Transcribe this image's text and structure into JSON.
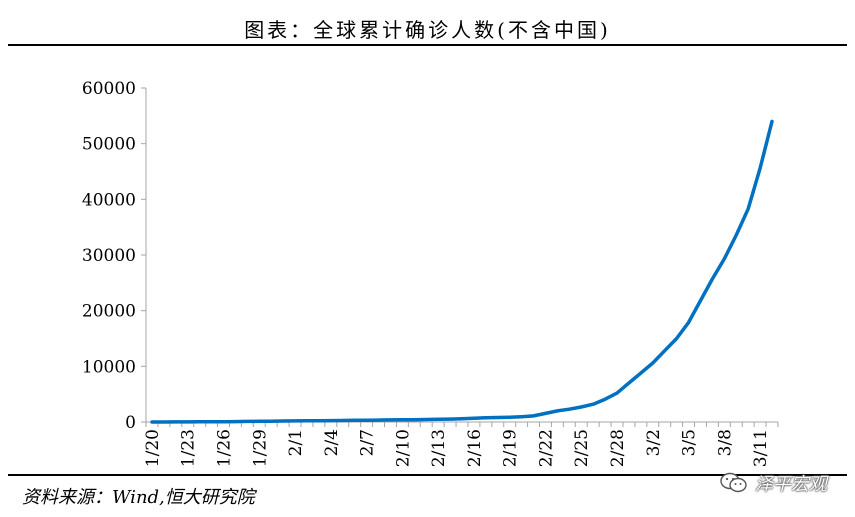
{
  "title": "图表：全球累计确诊人数(不含中国)",
  "source": "资料来源：Wind,恒大研究院",
  "watermark": "泽平宏观",
  "colors": {
    "line": "#0070C0",
    "axis": "#A6A6A6"
  },
  "chart_data": {
    "type": "line",
    "title": "图表：全球累计确诊人数(不含中国)",
    "xlabel": "",
    "ylabel": "",
    "ylim": [
      0,
      60000
    ],
    "yticks": [
      0,
      10000,
      20000,
      30000,
      40000,
      50000,
      60000
    ],
    "grid": false,
    "x": [
      "1/20",
      "1/21",
      "1/22",
      "1/23",
      "1/24",
      "1/25",
      "1/26",
      "1/27",
      "1/28",
      "1/29",
      "1/30",
      "1/31",
      "2/1",
      "2/2",
      "2/3",
      "2/4",
      "2/5",
      "2/6",
      "2/7",
      "2/8",
      "2/9",
      "2/10",
      "2/11",
      "2/12",
      "2/13",
      "2/14",
      "2/15",
      "2/16",
      "2/17",
      "2/18",
      "2/19",
      "2/20",
      "2/21",
      "2/22",
      "2/23",
      "2/24",
      "2/25",
      "2/26",
      "2/27",
      "2/28",
      "2/29",
      "3/1",
      "3/2",
      "3/3",
      "3/4",
      "3/5",
      "3/6",
      "3/7",
      "3/8",
      "3/9",
      "3/10",
      "3/11",
      "3/12"
    ],
    "xtick_labels": [
      "1/20",
      "1/23",
      "1/26",
      "1/29",
      "2/1",
      "2/4",
      "2/7",
      "2/10",
      "2/13",
      "2/16",
      "2/19",
      "2/22",
      "2/25",
      "2/28",
      "3/2",
      "3/5",
      "3/8",
      "3/11"
    ],
    "series": [
      {
        "values": [
          5,
          8,
          12,
          20,
          30,
          45,
          60,
          80,
          100,
          120,
          150,
          180,
          200,
          220,
          230,
          250,
          270,
          300,
          320,
          350,
          370,
          390,
          420,
          450,
          480,
          520,
          600,
          690,
          780,
          800,
          850,
          950,
          1100,
          1550,
          2000,
          2300,
          2700,
          3200,
          4100,
          5200,
          7000,
          8800,
          10600,
          12800,
          15000,
          17900,
          21800,
          25700,
          29300,
          33600,
          38300,
          45600,
          54000
        ]
      }
    ]
  }
}
